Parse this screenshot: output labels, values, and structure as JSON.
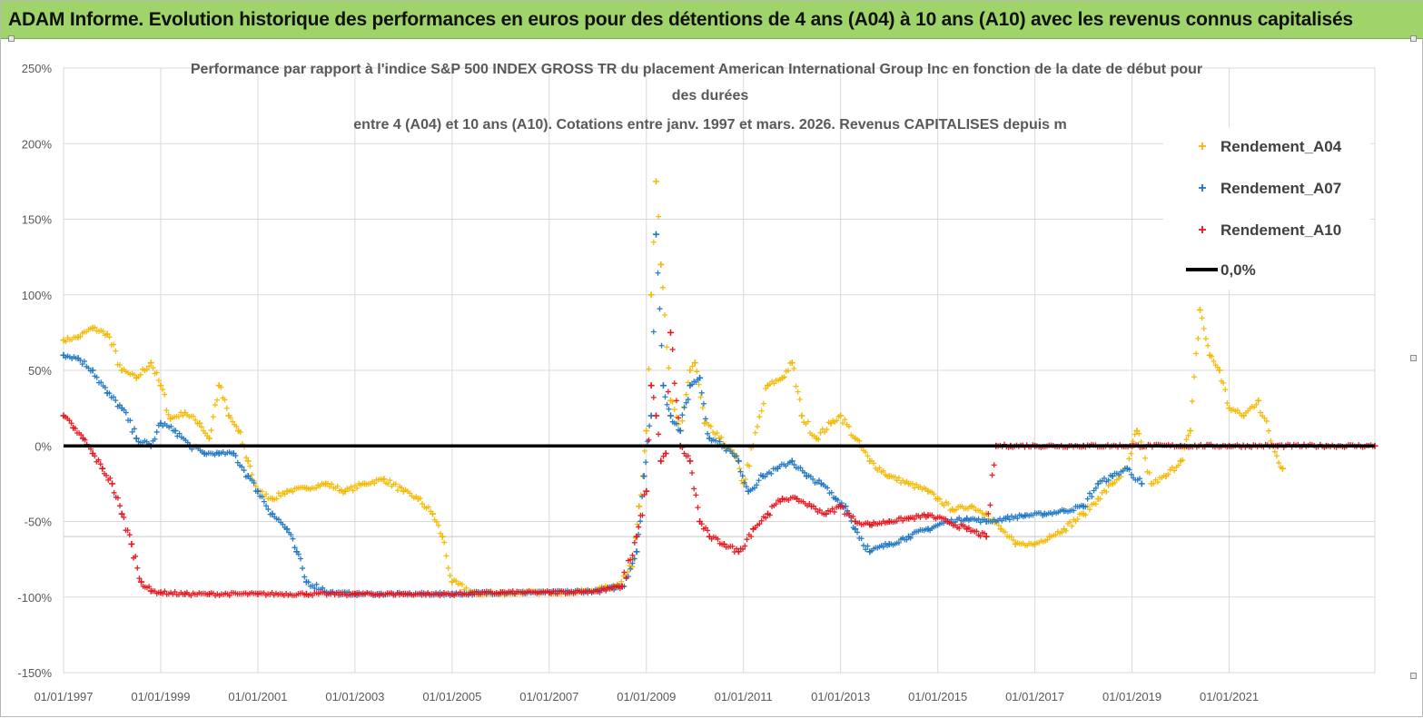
{
  "banner": {
    "title": "ADAM Informe. Evolution historique des performances en euros pour des détentions de 4 ans (A04) à 10 ans (A10) avec les revenus connus capitalisés"
  },
  "colors": {
    "banner_bg": "#9fd46a",
    "A04": "#f5b800",
    "A07": "#1f77c4",
    "A10": "#e8141b",
    "zero": "#000000",
    "grid": "#d9d9d9"
  },
  "chart_data": {
    "type": "scatter",
    "title_lines": [
      "Performance par rapport à l'indice S&P 500 INDEX GROSS TR  du placement American International Group Inc en fonction de la date de début pour",
      "des durées",
      "entre 4 (A04) et 10 ans (A10). Cotations entre janv. 1997 et mars. 2026. Revenus CAPITALISES depuis m"
    ],
    "xlabel": "",
    "ylabel": "",
    "x_range": [
      1997.0,
      2024.0
    ],
    "ylim": [
      -150,
      250
    ],
    "y_ticks": [
      250,
      200,
      150,
      100,
      50,
      0,
      -50,
      -100,
      -150
    ],
    "y_tick_labels": [
      "250%",
      "200%",
      "150%",
      "100%",
      "50%",
      "0%",
      "-50%",
      "-100%",
      "-150%"
    ],
    "x_ticks": [
      1997,
      1999,
      2001,
      2003,
      2005,
      2007,
      2009,
      2011,
      2013,
      2015,
      2017,
      2019,
      2021
    ],
    "x_tick_labels": [
      "01/01/1997",
      "01/01/1999",
      "01/01/2001",
      "01/01/2003",
      "01/01/2005",
      "01/01/2007",
      "01/01/2009",
      "01/01/2011",
      "01/01/2013",
      "01/01/2015",
      "01/01/2017",
      "01/01/2019",
      "01/01/2021"
    ],
    "legend_position": "top-right",
    "legend": [
      {
        "name": "Rendement_A04",
        "kind": "marker",
        "color": "#f5b800"
      },
      {
        "name": "Rendement_A07",
        "kind": "marker",
        "color": "#1f77c4"
      },
      {
        "name": "Rendement_A10",
        "kind": "marker",
        "color": "#e8141b"
      },
      {
        "name": "0,0%",
        "kind": "line",
        "color": "#000000"
      }
    ],
    "reference_line": {
      "name": "0,0%",
      "y": 0
    },
    "series": [
      {
        "name": "Rendement_A04",
        "color": "#f5b800",
        "x": [
          1997.0,
          1997.3,
          1997.6,
          1997.9,
          1998.2,
          1998.5,
          1998.8,
          1999.0,
          1999.2,
          1999.5,
          1999.8,
          2000.0,
          2000.2,
          2000.4,
          2000.6,
          2000.8,
          2001.0,
          2001.3,
          2001.6,
          2002.0,
          2002.4,
          2002.8,
          2003.2,
          2003.6,
          2004.0,
          2004.3,
          2004.6,
          2004.8,
          2005.0,
          2005.5,
          2006.0,
          2006.5,
          2007.0,
          2007.5,
          2008.0,
          2008.4,
          2008.7,
          2008.85,
          2009.0,
          2009.1,
          2009.2,
          2009.3,
          2009.5,
          2009.7,
          2009.9,
          2010.0,
          2010.2,
          2010.5,
          2010.8,
          2011.0,
          2011.2,
          2011.5,
          2011.8,
          2012.0,
          2012.2,
          2012.5,
          2012.8,
          2013.0,
          2013.3,
          2013.6,
          2014.0,
          2014.4,
          2014.8,
          2015.0,
          2015.3,
          2015.7,
          2016.0,
          2016.3,
          2016.6,
          2017.0,
          2017.3,
          2017.6,
          2018.0,
          2018.3,
          2018.6,
          2018.9,
          2019.1,
          2019.4,
          2019.7,
          2020.0,
          2020.2,
          2020.4,
          2020.6,
          2020.8,
          2021.0,
          2021.3,
          2021.6,
          2021.9,
          2022.1
        ],
        "y": [
          70,
          72,
          78,
          74,
          50,
          45,
          55,
          40,
          18,
          22,
          15,
          5,
          40,
          20,
          10,
          -10,
          -30,
          -35,
          -30,
          -28,
          -25,
          -30,
          -25,
          -22,
          -30,
          -35,
          -45,
          -60,
          -90,
          -98,
          -98,
          -97,
          -97,
          -97,
          -95,
          -92,
          -80,
          -40,
          10,
          100,
          175,
          120,
          30,
          10,
          50,
          55,
          15,
          5,
          -5,
          -25,
          0,
          40,
          45,
          55,
          20,
          5,
          15,
          20,
          5,
          -10,
          -20,
          -25,
          -30,
          -35,
          -42,
          -40,
          -45,
          -55,
          -65,
          -65,
          -60,
          -55,
          -45,
          -35,
          -25,
          -15,
          10,
          -25,
          -20,
          -10,
          10,
          90,
          60,
          50,
          25,
          20,
          30,
          0,
          -15
        ]
      },
      {
        "name": "Rendement_A07",
        "color": "#1f77c4",
        "x": [
          1997.0,
          1997.3,
          1997.6,
          1997.9,
          1998.2,
          1998.5,
          1998.8,
          1999.0,
          1999.3,
          1999.6,
          1999.9,
          2000.2,
          2000.5,
          2000.8,
          2001.0,
          2001.3,
          2001.6,
          2001.8,
          2002.0,
          2002.5,
          2003.0,
          2003.5,
          2004.0,
          2005.0,
          2006.0,
          2007.0,
          2008.0,
          2008.5,
          2008.8,
          2008.95,
          2009.1,
          2009.2,
          2009.35,
          2009.5,
          2009.7,
          2009.9,
          2010.1,
          2010.3,
          2010.6,
          2010.9,
          2011.1,
          2011.4,
          2011.7,
          2012.0,
          2012.3,
          2012.6,
          2012.9,
          2013.1,
          2013.3,
          2013.6,
          2014.0,
          2014.4,
          2014.8,
          2015.2,
          2015.6,
          2016.0,
          2016.4,
          2016.8,
          2017.2,
          2017.6,
          2018.0,
          2018.3,
          2018.6,
          2018.9,
          2019.2
        ],
        "y": [
          60,
          58,
          50,
          35,
          25,
          5,
          0,
          15,
          10,
          0,
          -5,
          -5,
          -5,
          -20,
          -30,
          -45,
          -55,
          -70,
          -90,
          -97,
          -98,
          -98,
          -98,
          -98,
          -97,
          -97,
          -96,
          -93,
          -70,
          -20,
          20,
          140,
          40,
          20,
          10,
          40,
          45,
          5,
          0,
          -10,
          -30,
          -20,
          -15,
          -10,
          -20,
          -25,
          -35,
          -40,
          -55,
          -70,
          -65,
          -60,
          -55,
          -50,
          -48,
          -50,
          -48,
          -46,
          -45,
          -43,
          -40,
          -25,
          -20,
          -15,
          -25
        ]
      },
      {
        "name": "Rendement_A10",
        "color": "#e8141b",
        "x": [
          1997.0,
          1997.2,
          1997.4,
          1997.6,
          1997.8,
          1998.0,
          1998.2,
          1998.4,
          1998.6,
          1998.8,
          1999.0,
          1999.5,
          2000.0,
          2001.0,
          2002.0,
          2003.0,
          2004.0,
          2005.0,
          2006.0,
          2007.0,
          2008.0,
          2008.5,
          2008.8,
          2009.0,
          2009.1,
          2009.2,
          2009.3,
          2009.4,
          2009.5,
          2009.7,
          2009.9,
          2010.1,
          2010.3,
          2010.6,
          2010.9,
          2011.2,
          2011.5,
          2011.8,
          2012.1,
          2012.4,
          2012.7,
          2013.0,
          2013.3,
          2013.6,
          2014.0,
          2014.4,
          2014.8,
          2015.2,
          2015.6,
          2016.0,
          2016.2,
          2016.5,
          2017.0,
          2018.0,
          2019.0,
          2020.0,
          2021.0,
          2022.0,
          2023.0,
          2024.0
        ],
        "y": [
          20,
          12,
          5,
          -5,
          -15,
          -25,
          -45,
          -65,
          -90,
          -96,
          -97,
          -98,
          -98,
          -98,
          -98,
          -98,
          -98,
          -98,
          -97,
          -97,
          -96,
          -93,
          -60,
          -30,
          40,
          20,
          -10,
          -5,
          75,
          0,
          -10,
          -50,
          -60,
          -65,
          -70,
          -55,
          -45,
          -35,
          -35,
          -40,
          -45,
          -40,
          -50,
          -52,
          -50,
          -48,
          -46,
          -50,
          -55,
          -60,
          0,
          0,
          0,
          0,
          0,
          0,
          0,
          0,
          0,
          0
        ]
      }
    ]
  }
}
